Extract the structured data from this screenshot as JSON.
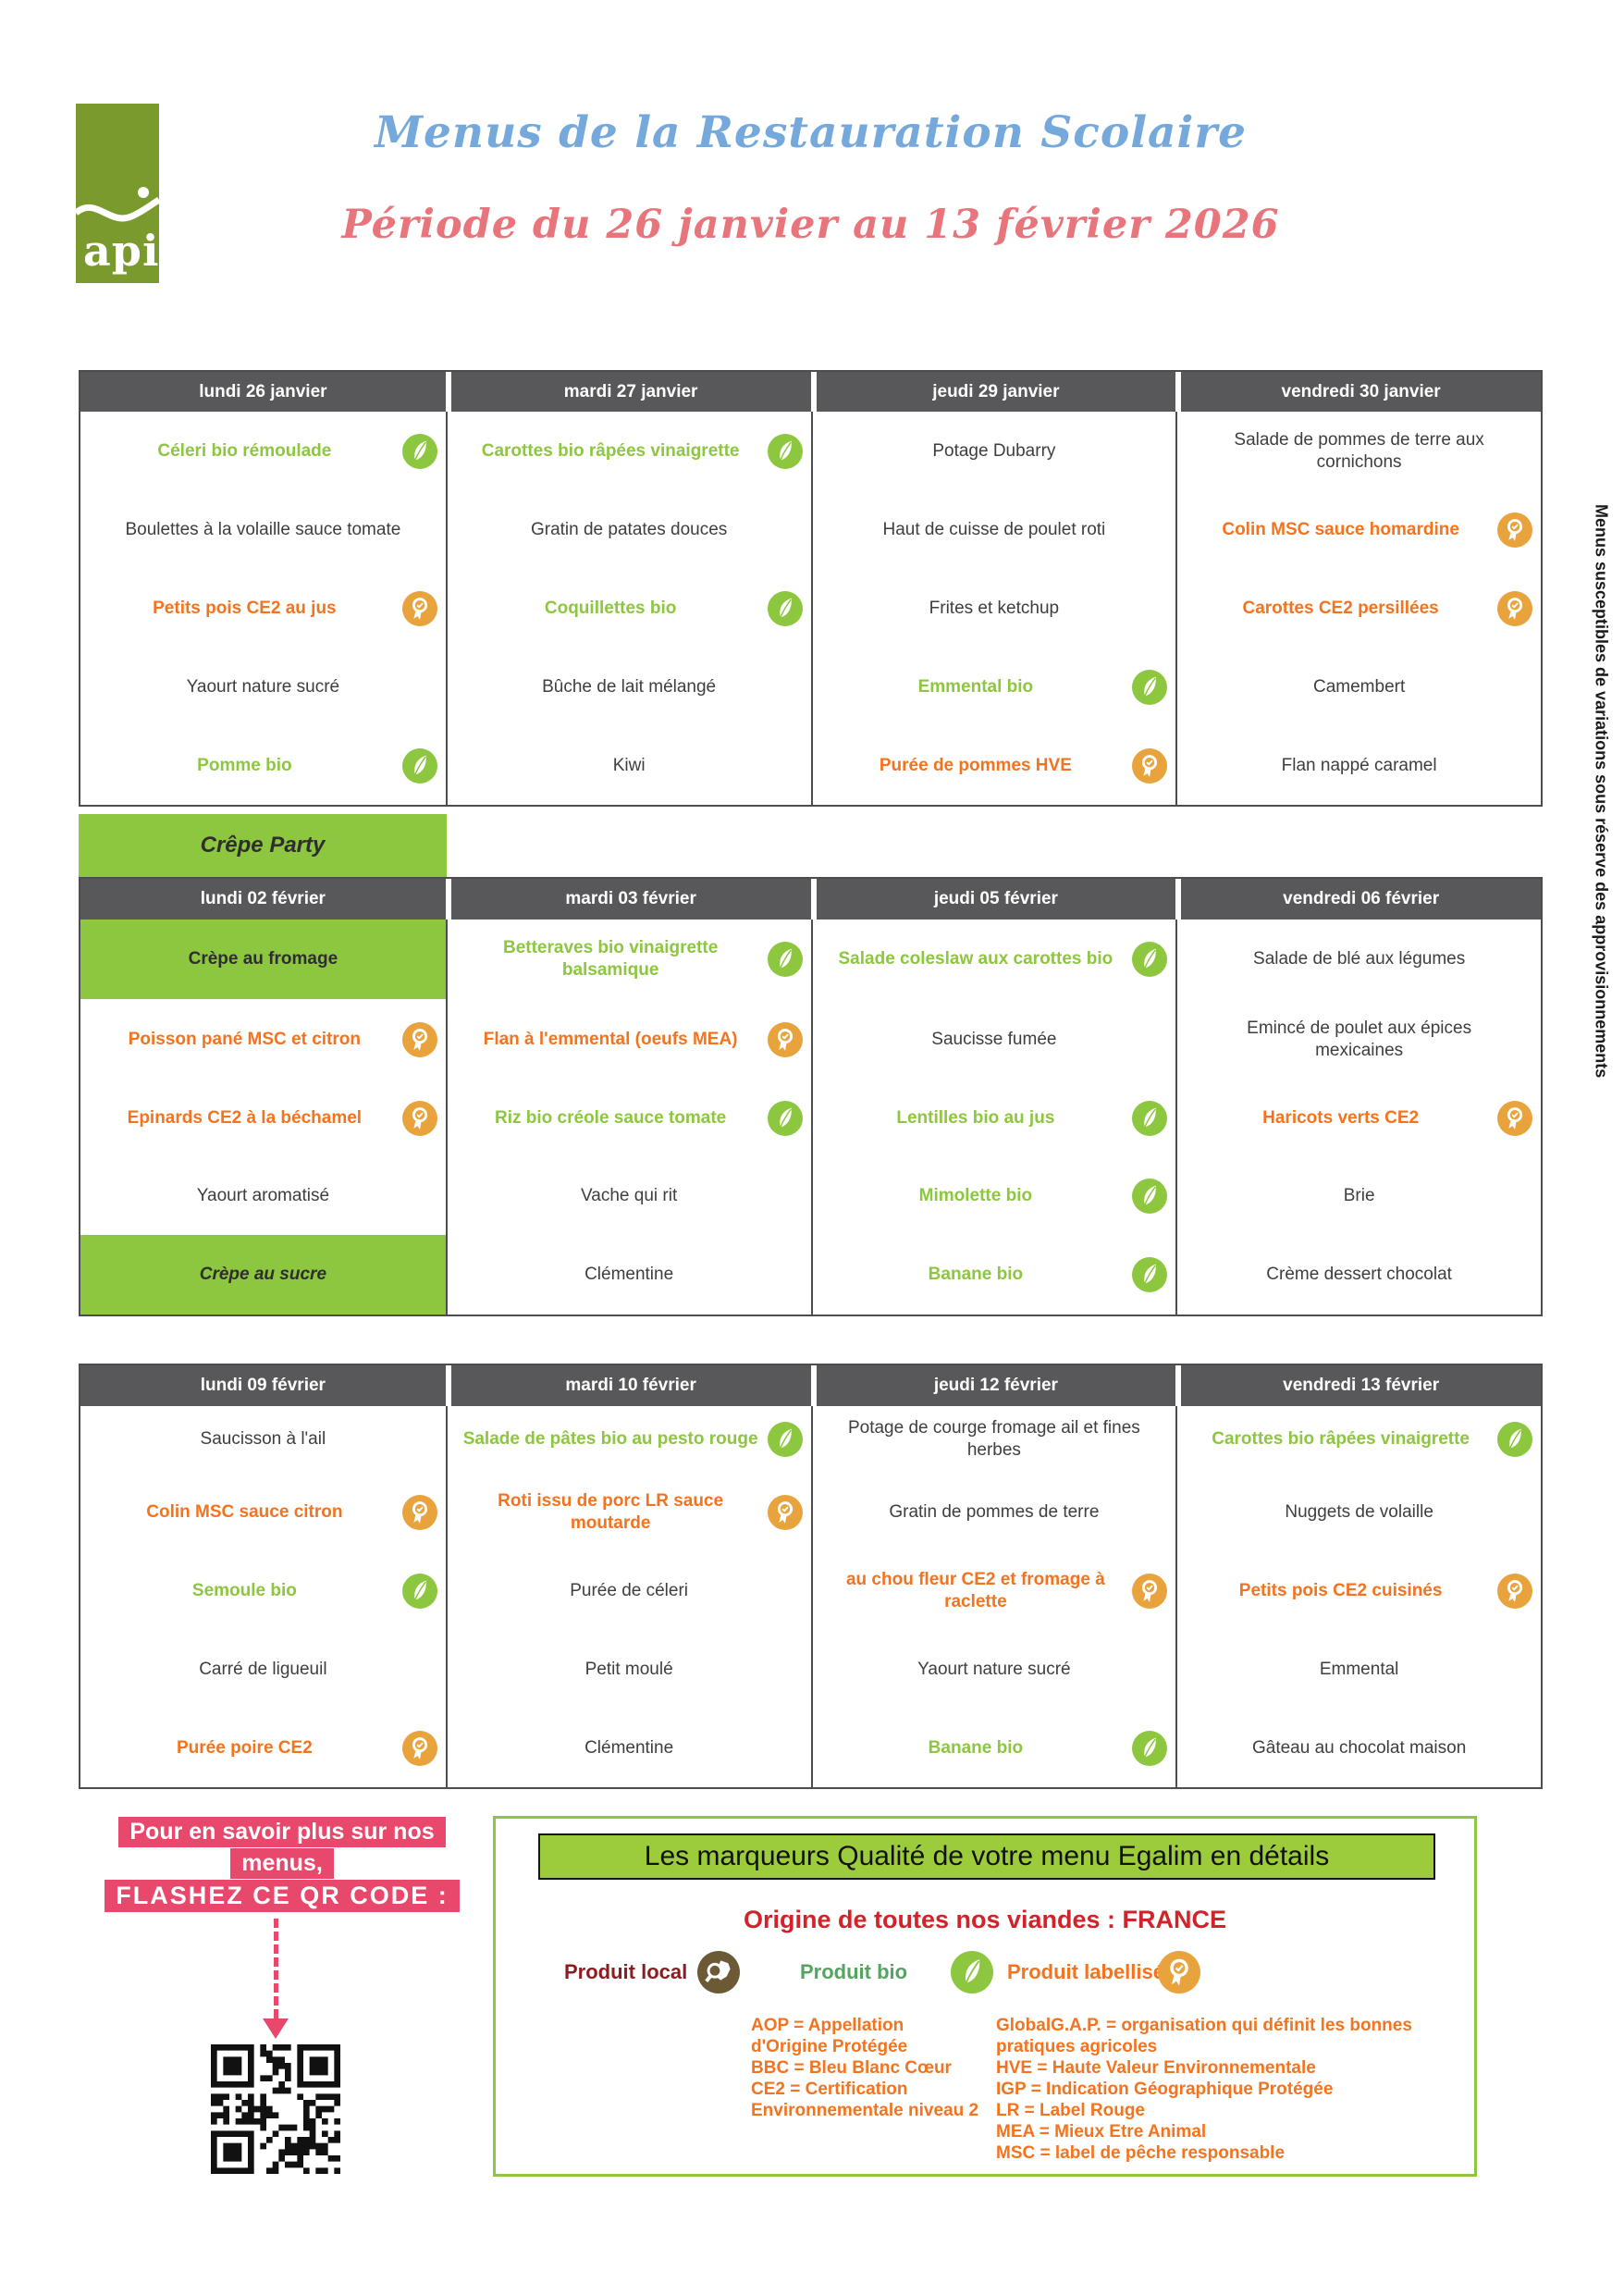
{
  "header": {
    "logo_text": "api",
    "title": "Menus de la Restauration Scolaire",
    "subtitle": "Période du 26 janvier au 13 février 2026"
  },
  "side_note": "Menus susceptibles de variations sous réserve des approvisionnements",
  "banner": {
    "label": "Crêpe Party"
  },
  "colors": {
    "green": "#8DC63F",
    "orange": "#F4731F",
    "medal_gold": "#E8A33D",
    "header_gray": "#58585A",
    "title_blue": "#76A9DB",
    "title_coral": "#E8757B",
    "pink": "#E8486B",
    "red": "#D2232A",
    "maroon": "#8E1B1F",
    "bio_green": "#55A45F",
    "brown": "#6C5A36",
    "logo_green": "#7A9A2E"
  },
  "icons": {
    "leaf": "bio-leaf-icon",
    "medal": "label-medal-icon",
    "local": "magnifier-france-map-icon"
  },
  "weeks": [
    {
      "days": [
        {
          "label": "lundi 26 janvier",
          "items": [
            {
              "label": "Céleri bio rémoulade",
              "color": "green",
              "icon": "leaf"
            },
            {
              "label": "Boulettes à la volaille sauce tomate",
              "color": "dark",
              "icon": "none"
            },
            {
              "label": "Petits pois CE2 au jus",
              "color": "orange",
              "icon": "medal"
            },
            {
              "label": "Yaourt nature sucré",
              "color": "dark",
              "icon": "none"
            },
            {
              "label": "Pomme bio",
              "color": "green",
              "icon": "leaf"
            }
          ]
        },
        {
          "label": "mardi 27 janvier",
          "items": [
            {
              "label": "Carottes bio râpées vinaigrette",
              "color": "green",
              "icon": "leaf"
            },
            {
              "label": "Gratin de patates douces",
              "color": "dark",
              "icon": "none"
            },
            {
              "label": "Coquillettes bio",
              "color": "green",
              "icon": "leaf"
            },
            {
              "label": "Bûche de lait mélangé",
              "color": "dark",
              "icon": "none"
            },
            {
              "label": "Kiwi",
              "color": "dark",
              "icon": "none"
            }
          ]
        },
        {
          "label": "jeudi 29 janvier",
          "items": [
            {
              "label": "Potage Dubarry",
              "color": "dark",
              "icon": "none"
            },
            {
              "label": "Haut de cuisse de poulet roti",
              "color": "dark",
              "icon": "none"
            },
            {
              "label": "Frites et ketchup",
              "color": "dark",
              "icon": "none"
            },
            {
              "label": "Emmental bio",
              "color": "green",
              "icon": "leaf"
            },
            {
              "label": "Purée de pommes HVE",
              "color": "orange",
              "icon": "medal"
            }
          ]
        },
        {
          "label": "vendredi 30 janvier",
          "items": [
            {
              "label": "Salade de pommes de terre aux cornichons",
              "color": "dark",
              "icon": "none"
            },
            {
              "label": "Colin MSC sauce homardine",
              "color": "orange",
              "icon": "medal"
            },
            {
              "label": "Carottes CE2 persillées",
              "color": "orange",
              "icon": "medal"
            },
            {
              "label": "Camembert",
              "color": "dark",
              "icon": "none"
            },
            {
              "label": "Flan nappé caramel",
              "color": "dark",
              "icon": "none"
            }
          ]
        }
      ]
    },
    {
      "days": [
        {
          "label": "lundi 02 février",
          "items": [
            {
              "label": "Crèpe au fromage",
              "color": "dark",
              "icon": "none",
              "bg": "green"
            },
            {
              "label": "Poisson pané MSC et citron",
              "color": "orange",
              "icon": "medal"
            },
            {
              "label": "Epinards CE2 à la béchamel",
              "color": "orange",
              "icon": "medal"
            },
            {
              "label": "Yaourt aromatisé",
              "color": "dark",
              "icon": "none"
            },
            {
              "label": "Crèpe au sucre",
              "color": "dark",
              "icon": "none",
              "bg": "green",
              "italic": true
            }
          ]
        },
        {
          "label": "mardi 03 février",
          "items": [
            {
              "label": "Betteraves bio vinaigrette balsamique",
              "color": "green",
              "icon": "leaf"
            },
            {
              "label": "Flan à l'emmental (oeufs MEA)",
              "color": "orange",
              "icon": "medal"
            },
            {
              "label": "Riz bio créole sauce tomate",
              "color": "green",
              "icon": "leaf"
            },
            {
              "label": "Vache qui rit",
              "color": "dark",
              "icon": "none"
            },
            {
              "label": "Clémentine",
              "color": "dark",
              "icon": "none"
            }
          ]
        },
        {
          "label": "jeudi 05 février",
          "items": [
            {
              "label": "Salade coleslaw aux carottes bio",
              "color": "green",
              "icon": "leaf"
            },
            {
              "label": "Saucisse fumée",
              "color": "dark",
              "icon": "none"
            },
            {
              "label": "Lentilles bio au jus",
              "color": "green",
              "icon": "leaf"
            },
            {
              "label": "Mimolette bio",
              "color": "green",
              "icon": "leaf"
            },
            {
              "label": "Banane bio",
              "color": "green",
              "icon": "leaf"
            }
          ]
        },
        {
          "label": "vendredi 06 février",
          "items": [
            {
              "label": "Salade de blé aux légumes",
              "color": "dark",
              "icon": "none"
            },
            {
              "label": "Emincé de poulet aux épices mexicaines",
              "color": "dark",
              "icon": "none"
            },
            {
              "label": "Haricots verts CE2",
              "color": "orange",
              "icon": "medal"
            },
            {
              "label": "Brie",
              "color": "dark",
              "icon": "none"
            },
            {
              "label": "Crème dessert chocolat",
              "color": "dark",
              "icon": "none"
            }
          ]
        }
      ]
    },
    {
      "days": [
        {
          "label": "lundi 09 février",
          "items": [
            {
              "label": "Saucisson à l'ail",
              "color": "dark",
              "icon": "none"
            },
            {
              "label": "Colin MSC sauce citron",
              "color": "orange",
              "icon": "medal"
            },
            {
              "label": "Semoule bio",
              "color": "green",
              "icon": "leaf"
            },
            {
              "label": "Carré de ligueuil",
              "color": "dark",
              "icon": "none"
            },
            {
              "label": "Purée poire CE2",
              "color": "orange",
              "icon": "medal"
            }
          ]
        },
        {
          "label": "mardi 10 février",
          "items": [
            {
              "label": "Salade de pâtes bio au pesto rouge",
              "color": "green",
              "icon": "leaf"
            },
            {
              "label": "Roti issu de porc LR sauce moutarde",
              "color": "orange",
              "icon": "medal"
            },
            {
              "label": "Purée de céleri",
              "color": "dark",
              "icon": "none"
            },
            {
              "label": "Petit moulé",
              "color": "dark",
              "icon": "none"
            },
            {
              "label": "Clémentine",
              "color": "dark",
              "icon": "none"
            }
          ]
        },
        {
          "label": "jeudi 12 février",
          "items": [
            {
              "label": "Potage de courge fromage ail et fines herbes",
              "color": "dark",
              "icon": "none"
            },
            {
              "label": "Gratin de pommes de terre",
              "color": "dark",
              "icon": "none"
            },
            {
              "label": "au chou fleur CE2 et fromage à raclette",
              "color": "orange",
              "icon": "medal"
            },
            {
              "label": "Yaourt nature sucré",
              "color": "dark",
              "icon": "none"
            },
            {
              "label": "Banane bio",
              "color": "green",
              "icon": "leaf"
            }
          ]
        },
        {
          "label": "vendredi 13 février",
          "items": [
            {
              "label": "Carottes bio râpées vinaigrette",
              "color": "green",
              "icon": "leaf"
            },
            {
              "label": "Nuggets de volaille",
              "color": "dark",
              "icon": "none"
            },
            {
              "label": "Petits pois CE2 cuisinés",
              "color": "orange",
              "icon": "medal"
            },
            {
              "label": "Emmental",
              "color": "dark",
              "icon": "none"
            },
            {
              "label": "Gâteau au chocolat maison",
              "color": "dark",
              "icon": "none"
            }
          ]
        }
      ]
    }
  ],
  "qr_block": {
    "line1": "Pour en savoir plus sur nos",
    "line2": "menus,",
    "line3": "FLASHEZ CE QR CODE :"
  },
  "legend": {
    "title": "Les marqueurs Qualité de votre menu Egalim en détails",
    "origin": "Origine de toutes nos viandes : FRANCE",
    "markers": [
      {
        "label": "Produit local",
        "icon": "local"
      },
      {
        "label": "Produit bio",
        "icon": "leaf"
      },
      {
        "label": "Produit labellisé",
        "icon": "medal"
      }
    ],
    "definitions_col1": [
      "AOP = Appellation",
      "d'Origine Protégée",
      "BBC = Bleu Blanc Cœur",
      "CE2 = Certification",
      "Environnementale niveau 2"
    ],
    "definitions_col2": [
      "GlobalG.A.P. = organisation qui définit les bonnes",
      "pratiques agricoles",
      "HVE = Haute Valeur Environnementale",
      "IGP = Indication Géographique Protégée",
      "LR = Label Rouge",
      "MEA = Mieux Etre Animal",
      "MSC = label de pêche responsable"
    ]
  }
}
